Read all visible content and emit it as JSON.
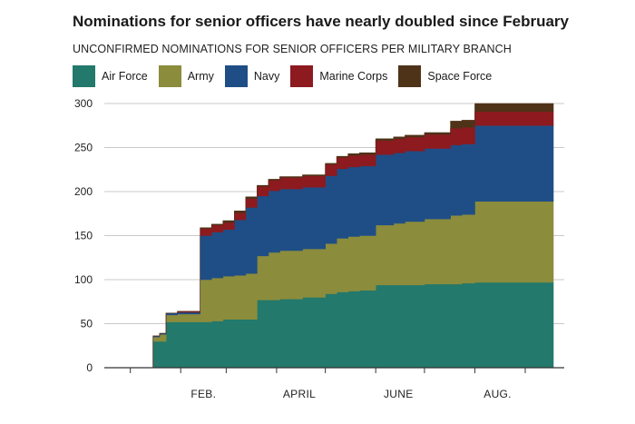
{
  "chart_data": {
    "type": "area",
    "title": "Nominations for senior officers have nearly doubled since February",
    "subtitle": "UNCONFIRMED NOMINATIONS FOR SENIOR OFFICERS PER MILITARY BRANCH",
    "xlabel": "",
    "ylabel": "",
    "ylim": [
      0,
      300
    ],
    "y_ticks": [
      0,
      50,
      100,
      150,
      200,
      250,
      300
    ],
    "x_tick_labels": [
      "FEB.",
      "APRIL",
      "JUNE",
      "AUG."
    ],
    "grid": true,
    "legend": "top",
    "x": [
      "2023-01-01",
      "2023-01-15",
      "2023-01-19",
      "2023-01-23",
      "2023-01-30",
      "2023-02-13",
      "2023-02-20",
      "2023-02-27",
      "2023-03-06",
      "2023-03-13",
      "2023-03-20",
      "2023-03-27",
      "2023-04-03",
      "2023-04-17",
      "2023-05-01",
      "2023-05-08",
      "2023-05-15",
      "2023-05-22",
      "2023-06-01",
      "2023-06-12",
      "2023-06-19",
      "2023-07-01",
      "2023-07-17",
      "2023-07-24",
      "2023-08-01",
      "2023-08-31"
    ],
    "series": [
      {
        "name": "Air Force",
        "color": "#23796b",
        "values": [
          0,
          30,
          30,
          52,
          52,
          52,
          53,
          55,
          55,
          55,
          77,
          77,
          78,
          80,
          84,
          86,
          87,
          88,
          94,
          94,
          94,
          95,
          95,
          96,
          97,
          97
        ]
      },
      {
        "name": "Army",
        "color": "#8b8c3c",
        "values": [
          0,
          5,
          8,
          8,
          9,
          48,
          49,
          49,
          50,
          52,
          50,
          54,
          55,
          55,
          57,
          61,
          62,
          62,
          68,
          70,
          72,
          74,
          78,
          78,
          92,
          92
        ]
      },
      {
        "name": "Navy",
        "color": "#1f4e86",
        "values": [
          0,
          1,
          1,
          2,
          2,
          50,
          52,
          53,
          63,
          75,
          68,
          70,
          70,
          70,
          77,
          79,
          79,
          79,
          80,
          80,
          80,
          80,
          80,
          80,
          86,
          86
        ]
      },
      {
        "name": "Marine Corps",
        "color": "#8c1a1f",
        "values": [
          0,
          0,
          0,
          0,
          1,
          8,
          8,
          8,
          8,
          10,
          11,
          12,
          13,
          13,
          13,
          13,
          13,
          13,
          16,
          16,
          16,
          16,
          19,
          19,
          16,
          16
        ]
      },
      {
        "name": "Space Force",
        "color": "#4f3318",
        "values": [
          0,
          0,
          0,
          0,
          0,
          1,
          1,
          2,
          2,
          2,
          1,
          1,
          1,
          1,
          1,
          1,
          2,
          2,
          2,
          2,
          2,
          2,
          8,
          8,
          9,
          9
        ]
      }
    ]
  }
}
